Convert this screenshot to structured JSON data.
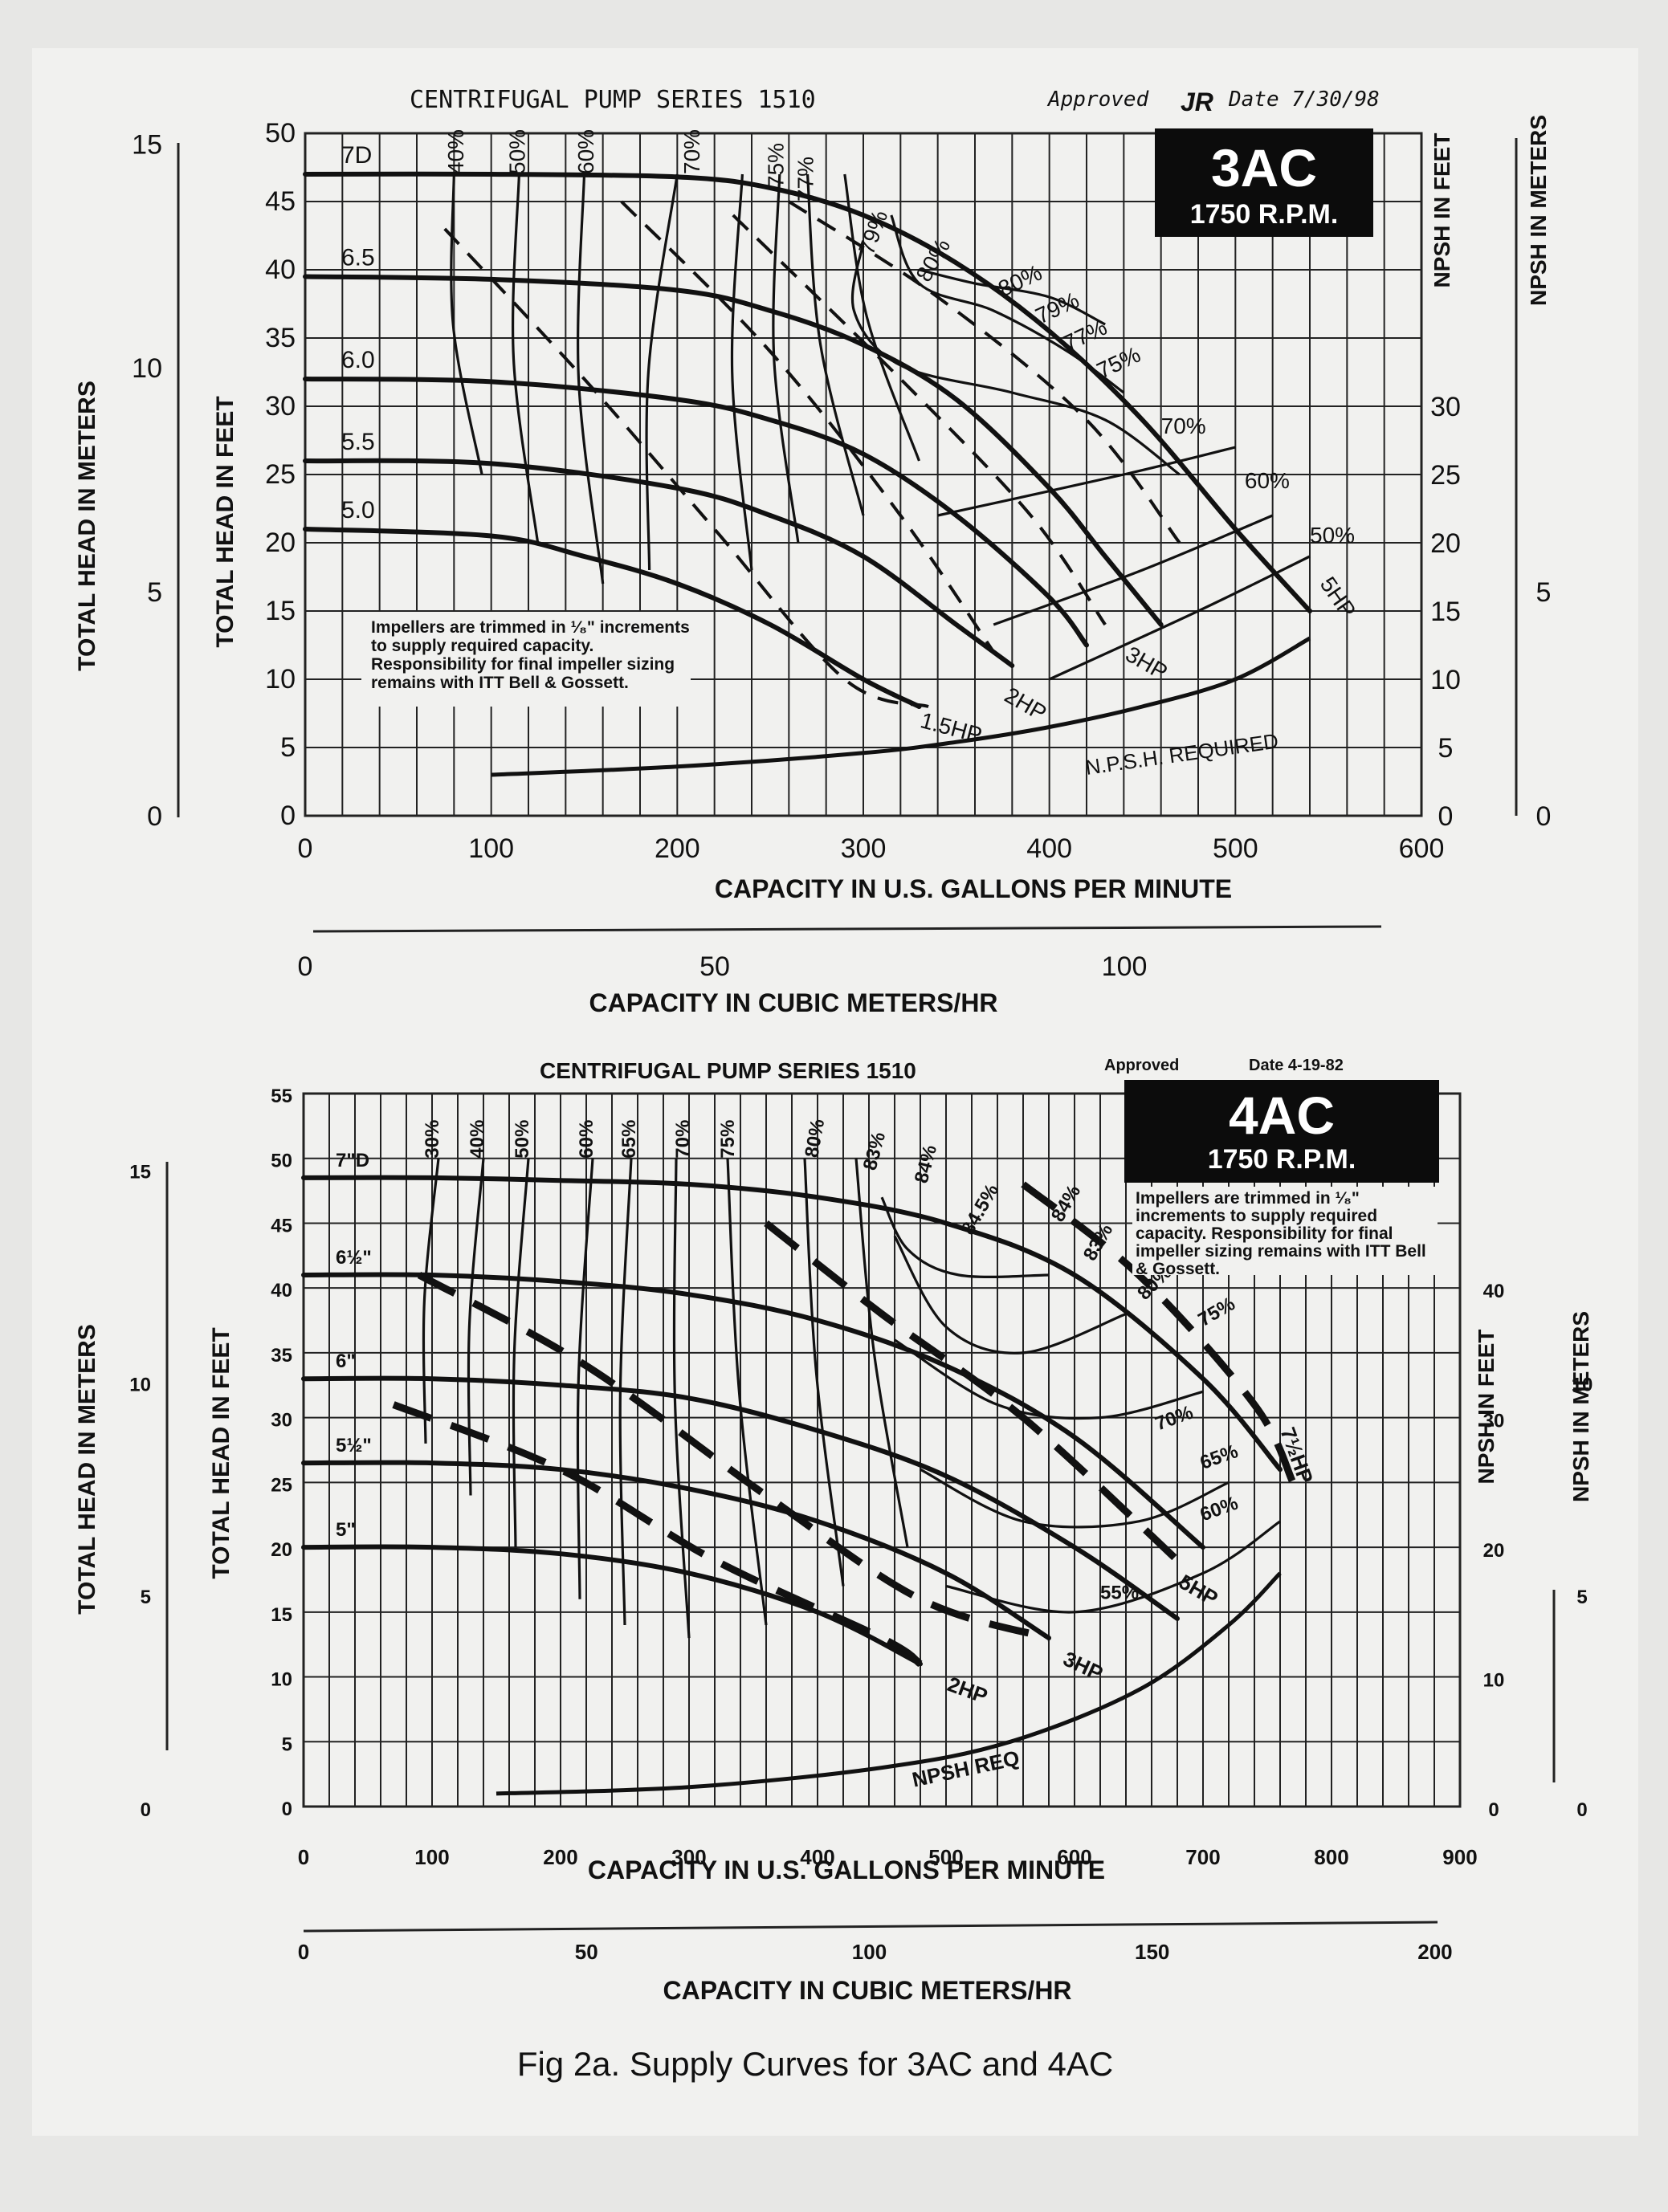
{
  "caption": "Fig 2a. Supply Curves for 3AC and 4AC",
  "chart_data": [
    {
      "type": "line",
      "title": "CENTRIFUGAL PUMP SERIES 1510",
      "model": "3AC",
      "speed": "1750 R.P.M.",
      "approved": "Approved",
      "approved_initials": "JR",
      "date": "Date 7/30/98",
      "note": "Impellers are trimmed in ¹⁄₈\" increments to supply required capacity. Responsibility for final impeller sizing remains with ITT Bell & Gossett.",
      "xlabel": "CAPACITY IN U.S. GALLONS PER MINUTE",
      "xlabel2": "CAPACITY IN CUBIC METERS/HR",
      "ylabel": "TOTAL HEAD IN FEET",
      "ylabel_m": "TOTAL HEAD IN METERS",
      "ylabel_npsh_ft": "NPSH IN FEET",
      "ylabel_npsh_m": "NPSH IN METERS",
      "xlim": [
        0,
        600
      ],
      "ylim": [
        0,
        50
      ],
      "xticks": [
        "0",
        "100",
        "200",
        "300",
        "400",
        "500",
        "600"
      ],
      "yticks": [
        "0",
        "5",
        "10",
        "15",
        "20",
        "25",
        "30",
        "35",
        "40",
        "45",
        "50"
      ],
      "m3_ticks": [
        "0",
        "50",
        "100"
      ],
      "m_ticks": [
        "0",
        "5",
        "10",
        "15"
      ],
      "npsh_ft_ticks": [
        "0",
        "5",
        "10",
        "15",
        "20",
        "25",
        "30"
      ],
      "npsh_m_ticks": [
        "0",
        "5"
      ],
      "series": [
        {
          "name": "7D",
          "x": [
            0,
            100,
            200,
            250,
            300,
            350,
            400,
            450,
            500,
            540
          ],
          "y": [
            47,
            47,
            46.8,
            46,
            44,
            40.5,
            35.5,
            29,
            21,
            15
          ]
        },
        {
          "name": "6.5",
          "x": [
            0,
            100,
            200,
            250,
            300,
            350,
            400,
            430,
            460
          ],
          "y": [
            39.5,
            39.3,
            38.5,
            37,
            34.5,
            30.5,
            24,
            19,
            14
          ]
        },
        {
          "name": "6.0",
          "x": [
            0,
            100,
            200,
            250,
            300,
            350,
            400,
            420
          ],
          "y": [
            32,
            31.8,
            30.5,
            29,
            26.5,
            22,
            16,
            12.5
          ]
        },
        {
          "name": "5.5",
          "x": [
            0,
            100,
            200,
            250,
            300,
            350,
            380
          ],
          "y": [
            26,
            25.8,
            24,
            22,
            19,
            14,
            11
          ]
        },
        {
          "name": "5.0",
          "x": [
            0,
            100,
            150,
            200,
            250,
            300,
            330
          ],
          "y": [
            21,
            20.5,
            19,
            17,
            14,
            10,
            8
          ]
        }
      ],
      "efficiency_labels": [
        "40%",
        "50%",
        "60%",
        "70%",
        "75%",
        "77%",
        "79%",
        "80%",
        "80%",
        "79%",
        "77%",
        "75%",
        "70%",
        "60%",
        "50%"
      ],
      "hp_labels": [
        "1.5HP",
        "2HP",
        "3HP",
        "5HP"
      ],
      "npsh_label": "N.P.S.H. REQUIRED",
      "npsh_required": {
        "x": [
          100,
          200,
          300,
          350,
          400,
          450,
          500,
          540
        ],
        "y": [
          3,
          3.6,
          4.6,
          5.4,
          6.5,
          8,
          10,
          13
        ]
      }
    },
    {
      "type": "line",
      "title": "CENTRIFUGAL PUMP SERIES 1510",
      "model": "4AC",
      "speed": "1750 R.P.M.",
      "approved": "Approved",
      "date": "Date 4-19-82",
      "note": "Impellers are trimmed in ¹⁄₈\" increments to supply required capacity. Responsibility for final impeller sizing remains with ITT Bell & Gossett.",
      "xlabel": "CAPACITY IN U.S. GALLONS PER MINUTE",
      "xlabel2": "CAPACITY IN CUBIC METERS/HR",
      "ylabel": "TOTAL HEAD IN FEET",
      "ylabel_m": "TOTAL HEAD IN METERS",
      "ylabel_npsh_ft": "NPSH IN FEET",
      "ylabel_npsh_m": "NPSH IN METERS",
      "xlim": [
        0,
        900
      ],
      "ylim": [
        0,
        55
      ],
      "xticks": [
        "0",
        "100",
        "200",
        "300",
        "400",
        "500",
        "600",
        "700",
        "800",
        "900"
      ],
      "yticks": [
        "0",
        "5",
        "10",
        "15",
        "20",
        "25",
        "30",
        "35",
        "40",
        "45",
        "50",
        "55"
      ],
      "m3_ticks": [
        "0",
        "50",
        "100",
        "150",
        "200"
      ],
      "m_ticks": [
        "0",
        "5",
        "10",
        "15"
      ],
      "npsh_ft_ticks": [
        "0",
        "10",
        "20",
        "30",
        "40"
      ],
      "npsh_m_ticks": [
        "0",
        "5",
        "10"
      ],
      "series": [
        {
          "name": "7\"D",
          "x": [
            0,
            100,
            200,
            300,
            400,
            500,
            600,
            700,
            760
          ],
          "y": [
            48.5,
            48.5,
            48.3,
            48,
            47,
            45,
            41,
            33,
            26
          ]
        },
        {
          "name": "6½\"",
          "x": [
            0,
            100,
            200,
            300,
            400,
            500,
            600,
            700
          ],
          "y": [
            41,
            41,
            40.5,
            39.5,
            37.5,
            34,
            28.5,
            20
          ]
        },
        {
          "name": "6\"",
          "x": [
            0,
            100,
            200,
            300,
            400,
            500,
            600,
            680
          ],
          "y": [
            33,
            33,
            32.5,
            31.5,
            29,
            25.5,
            20,
            14.5
          ]
        },
        {
          "name": "5½\"",
          "x": [
            0,
            100,
            200,
            300,
            400,
            500,
            580
          ],
          "y": [
            26.5,
            26.5,
            26,
            24.5,
            22,
            18,
            13
          ]
        },
        {
          "name": "5\"",
          "x": [
            0,
            100,
            200,
            300,
            400,
            480
          ],
          "y": [
            20,
            20,
            19.5,
            18,
            15,
            11
          ]
        }
      ],
      "efficiency_labels": [
        "30%",
        "40%",
        "50%",
        "60%",
        "65%",
        "70%",
        "75%",
        "80%",
        "83%",
        "84%",
        "84.5%",
        "84%",
        "83%",
        "80%",
        "75%",
        "70%",
        "65%",
        "60%",
        "55%"
      ],
      "hp_labels": [
        "2HP",
        "3HP",
        "5HP",
        "7½HP"
      ],
      "npsh_label": "NPSH REQ",
      "npsh_required": {
        "x": [
          150,
          300,
          450,
          550,
          650,
          720,
          760
        ],
        "y": [
          1,
          1.5,
          3,
          5,
          9,
          14,
          18
        ]
      }
    }
  ]
}
